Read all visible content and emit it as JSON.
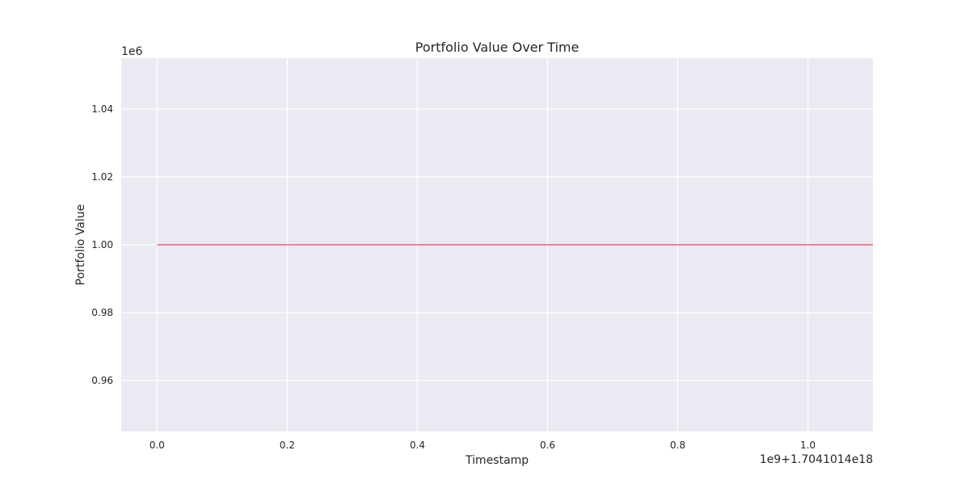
{
  "chart_data": {
    "type": "line",
    "title": "Portfolio Value Over Time",
    "xlabel": "Timestamp",
    "ylabel": "Portfolio Value",
    "x_offset_text": "1e9+1.7041014e18",
    "y_offset_text": "1e6",
    "xlim": [
      -0.055,
      1.1
    ],
    "ylim": [
      0.945,
      1.055
    ],
    "x_ticks": [
      0.0,
      0.2,
      0.4,
      0.6,
      0.8,
      1.0
    ],
    "x_tick_labels": [
      "0.0",
      "0.2",
      "0.4",
      "0.6",
      "0.8",
      "1.0"
    ],
    "y_ticks": [
      0.96,
      0.98,
      1.0,
      1.02,
      1.04
    ],
    "y_tick_labels": [
      "0.96",
      "0.98",
      "1.00",
      "1.02",
      "1.04"
    ],
    "grid": true,
    "series": [
      {
        "x": [
          0.0,
          1.1
        ],
        "y": [
          1.0,
          1.0
        ]
      }
    ],
    "colors": {
      "plot_background": "#EAEAF2",
      "grid": "#FFFFFF",
      "line": "#F2607A"
    }
  }
}
